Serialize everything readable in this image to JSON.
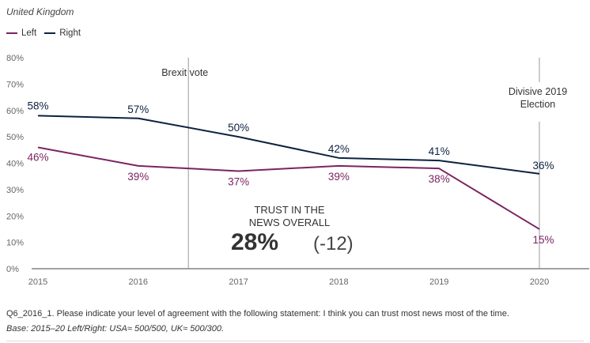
{
  "region": "United Kingdom",
  "legend": [
    {
      "name": "Left",
      "color": "#7b2462"
    },
    {
      "name": "Right",
      "color": "#0d2240"
    }
  ],
  "callout": {
    "label_line1": "TRUST IN THE",
    "label_line2": "NEWS OVERALL",
    "value": "28%",
    "change": "(-12)"
  },
  "footnote": {
    "question": "Q6_2016_1. Please indicate your level of agreement with the following statement: I think you can trust most news most of the time.",
    "base": "Base: 2015–20 Left/Right: USA≈ 500/500, UK≈ 500/300."
  },
  "chart_data": {
    "type": "line",
    "x": [
      2015,
      2016,
      2017,
      2018,
      2019,
      2020
    ],
    "categories": [
      "2015",
      "2016",
      "2017",
      "2018",
      "2019",
      "2020"
    ],
    "ylim": [
      0,
      80
    ],
    "yticks": [
      0,
      10,
      20,
      30,
      40,
      50,
      60,
      70,
      80
    ],
    "ytick_labels": [
      "0%",
      "10%",
      "20%",
      "30%",
      "40%",
      "50%",
      "60%",
      "70%",
      "80%"
    ],
    "grid": false,
    "series": [
      {
        "name": "Left",
        "color": "#7b2462",
        "values": [
          46,
          39,
          37,
          39,
          38,
          15
        ],
        "labels": [
          "46%",
          "39%",
          "37%",
          "39%",
          "38%",
          "15%"
        ]
      },
      {
        "name": "Right",
        "color": "#0d2240",
        "values": [
          58,
          57,
          50,
          42,
          41,
          36
        ],
        "labels": [
          "58%",
          "57%",
          "50%",
          "42%",
          "41%",
          "36%"
        ]
      }
    ],
    "annotations": [
      {
        "x": 2016.5,
        "lines": [
          "Brexit vote"
        ]
      },
      {
        "x": 2020,
        "lines": [
          "Divisive 2019",
          "Election"
        ]
      }
    ]
  }
}
